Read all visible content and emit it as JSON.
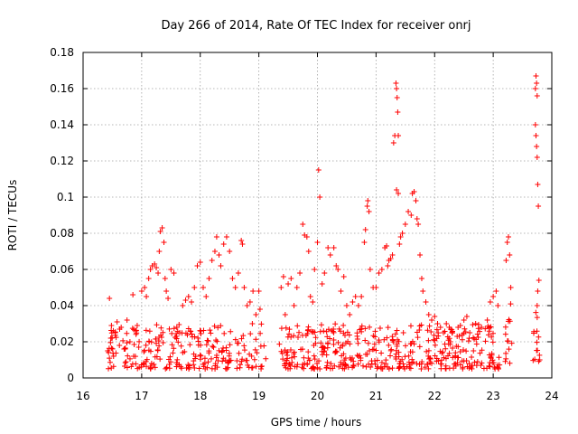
{
  "chart_data": {
    "type": "scatter",
    "title": "Day 266 of 2014, Rate Of TEC Index for receiver onrj",
    "xlabel": "GPS time / hours",
    "ylabel": "ROTI / TECUs",
    "xlim": [
      16,
      24
    ],
    "ylim": [
      0,
      0.18
    ],
    "x_ticks": [
      "16",
      "17",
      "18",
      "19",
      "20",
      "21",
      "22",
      "23",
      "24"
    ],
    "y_ticks": [
      "0",
      "0.02",
      "0.04",
      "0.06",
      "0.08",
      "0.1",
      "0.12",
      "0.14",
      "0.16",
      "0.18"
    ],
    "grid": true,
    "marker": "+",
    "color": "#ff0000",
    "series": [
      {
        "name": "ROTI",
        "points": [
          [
            16.42,
            0.015
          ],
          [
            16.45,
            0.044
          ],
          [
            16.48,
            0.022
          ],
          [
            16.52,
            0.012
          ],
          [
            16.55,
            0.025
          ],
          [
            16.58,
            0.031
          ],
          [
            16.62,
            0.018
          ],
          [
            16.65,
            0.028
          ],
          [
            16.7,
            0.016
          ],
          [
            16.75,
            0.032
          ],
          [
            16.8,
            0.02
          ],
          [
            16.85,
            0.046
          ],
          [
            16.9,
            0.026
          ],
          [
            16.95,
            0.017
          ],
          [
            17.0,
            0.048
          ],
          [
            17.05,
            0.05
          ],
          [
            17.08,
            0.045
          ],
          [
            17.12,
            0.055
          ],
          [
            17.15,
            0.06
          ],
          [
            17.18,
            0.062
          ],
          [
            17.22,
            0.063
          ],
          [
            17.25,
            0.061
          ],
          [
            17.28,
            0.058
          ],
          [
            17.3,
            0.07
          ],
          [
            17.32,
            0.081
          ],
          [
            17.35,
            0.083
          ],
          [
            17.38,
            0.075
          ],
          [
            17.4,
            0.055
          ],
          [
            17.42,
            0.048
          ],
          [
            17.45,
            0.044
          ],
          [
            17.5,
            0.06
          ],
          [
            17.55,
            0.058
          ],
          [
            17.6,
            0.028
          ],
          [
            17.65,
            0.025
          ],
          [
            17.7,
            0.04
          ],
          [
            17.75,
            0.043
          ],
          [
            17.8,
            0.045
          ],
          [
            17.85,
            0.042
          ],
          [
            17.9,
            0.05
          ],
          [
            17.95,
            0.062
          ],
          [
            18.0,
            0.064
          ],
          [
            18.05,
            0.05
          ],
          [
            18.1,
            0.045
          ],
          [
            18.15,
            0.055
          ],
          [
            18.2,
            0.065
          ],
          [
            18.25,
            0.07
          ],
          [
            18.28,
            0.078
          ],
          [
            18.32,
            0.068
          ],
          [
            18.35,
            0.062
          ],
          [
            18.4,
            0.074
          ],
          [
            18.45,
            0.078
          ],
          [
            18.5,
            0.07
          ],
          [
            18.55,
            0.055
          ],
          [
            18.6,
            0.05
          ],
          [
            18.65,
            0.058
          ],
          [
            18.7,
            0.076
          ],
          [
            18.72,
            0.074
          ],
          [
            18.75,
            0.05
          ],
          [
            18.8,
            0.04
          ],
          [
            18.85,
            0.042
          ],
          [
            18.9,
            0.048
          ],
          [
            18.95,
            0.035
          ],
          [
            19.0,
            0.048
          ],
          [
            19.02,
            0.038
          ],
          [
            19.38,
            0.05
          ],
          [
            19.42,
            0.056
          ],
          [
            19.45,
            0.035
          ],
          [
            19.5,
            0.052
          ],
          [
            19.55,
            0.055
          ],
          [
            19.6,
            0.04
          ],
          [
            19.65,
            0.05
          ],
          [
            19.7,
            0.058
          ],
          [
            19.75,
            0.085
          ],
          [
            19.78,
            0.079
          ],
          [
            19.82,
            0.078
          ],
          [
            19.85,
            0.07
          ],
          [
            19.88,
            0.045
          ],
          [
            19.92,
            0.042
          ],
          [
            19.95,
            0.06
          ],
          [
            20.0,
            0.075
          ],
          [
            20.02,
            0.115
          ],
          [
            20.04,
            0.1
          ],
          [
            20.08,
            0.052
          ],
          [
            20.12,
            0.058
          ],
          [
            20.18,
            0.072
          ],
          [
            20.22,
            0.068
          ],
          [
            20.28,
            0.072
          ],
          [
            20.32,
            0.062
          ],
          [
            20.35,
            0.06
          ],
          [
            20.4,
            0.048
          ],
          [
            20.45,
            0.056
          ],
          [
            20.5,
            0.04
          ],
          [
            20.55,
            0.035
          ],
          [
            20.6,
            0.042
          ],
          [
            20.65,
            0.045
          ],
          [
            20.7,
            0.04
          ],
          [
            20.75,
            0.045
          ],
          [
            20.8,
            0.075
          ],
          [
            20.82,
            0.082
          ],
          [
            20.85,
            0.095
          ],
          [
            20.86,
            0.098
          ],
          [
            20.88,
            0.092
          ],
          [
            20.9,
            0.06
          ],
          [
            20.95,
            0.05
          ],
          [
            21.0,
            0.05
          ],
          [
            21.05,
            0.058
          ],
          [
            21.1,
            0.06
          ],
          [
            21.15,
            0.072
          ],
          [
            21.18,
            0.073
          ],
          [
            21.2,
            0.062
          ],
          [
            21.22,
            0.065
          ],
          [
            21.25,
            0.066
          ],
          [
            21.28,
            0.068
          ],
          [
            21.3,
            0.13
          ],
          [
            21.32,
            0.134
          ],
          [
            21.34,
            0.163
          ],
          [
            21.35,
            0.16
          ],
          [
            21.36,
            0.155
          ],
          [
            21.37,
            0.147
          ],
          [
            21.38,
            0.134
          ],
          [
            21.35,
            0.104
          ],
          [
            21.38,
            0.102
          ],
          [
            21.4,
            0.074
          ],
          [
            21.42,
            0.078
          ],
          [
            21.45,
            0.08
          ],
          [
            21.5,
            0.085
          ],
          [
            21.55,
            0.092
          ],
          [
            21.6,
            0.09
          ],
          [
            21.62,
            0.102
          ],
          [
            21.65,
            0.103
          ],
          [
            21.68,
            0.098
          ],
          [
            21.7,
            0.088
          ],
          [
            21.72,
            0.085
          ],
          [
            21.75,
            0.068
          ],
          [
            21.78,
            0.055
          ],
          [
            21.8,
            0.048
          ],
          [
            21.85,
            0.042
          ],
          [
            21.9,
            0.035
          ],
          [
            21.95,
            0.032
          ],
          [
            22.0,
            0.034
          ],
          [
            22.05,
            0.03
          ],
          [
            22.1,
            0.028
          ],
          [
            22.15,
            0.025
          ],
          [
            22.2,
            0.03
          ],
          [
            22.25,
            0.028
          ],
          [
            22.3,
            0.025
          ],
          [
            22.4,
            0.028
          ],
          [
            22.5,
            0.032
          ],
          [
            22.55,
            0.034
          ],
          [
            22.6,
            0.025
          ],
          [
            22.7,
            0.03
          ],
          [
            22.8,
            0.028
          ],
          [
            22.9,
            0.032
          ],
          [
            22.95,
            0.042
          ],
          [
            23.0,
            0.045
          ],
          [
            23.05,
            0.048
          ],
          [
            23.08,
            0.04
          ],
          [
            23.22,
            0.065
          ],
          [
            23.24,
            0.075
          ],
          [
            23.26,
            0.078
          ],
          [
            23.28,
            0.068
          ],
          [
            23.3,
            0.05
          ],
          [
            23.72,
            0.16
          ],
          [
            23.73,
            0.167
          ],
          [
            23.74,
            0.163
          ],
          [
            23.75,
            0.156
          ],
          [
            23.72,
            0.14
          ],
          [
            23.73,
            0.134
          ],
          [
            23.74,
            0.128
          ],
          [
            23.75,
            0.122
          ],
          [
            23.76,
            0.107
          ],
          [
            23.77,
            0.095
          ],
          [
            23.78,
            0.054
          ],
          [
            23.76,
            0.048
          ],
          [
            23.75,
            0.04
          ]
        ]
      }
    ],
    "dense_bands": [
      {
        "x_start": 16.42,
        "x_end": 19.12,
        "y_min": 0.005,
        "y_max": 0.03,
        "density": 90
      },
      {
        "x_start": 19.35,
        "x_end": 23.15,
        "y_min": 0.005,
        "y_max": 0.03,
        "density": 110
      },
      {
        "x_start": 23.2,
        "x_end": 23.32,
        "y_min": 0.008,
        "y_max": 0.045,
        "density": 120
      },
      {
        "x_start": 23.68,
        "x_end": 23.8,
        "y_min": 0.008,
        "y_max": 0.045,
        "density": 120
      }
    ]
  }
}
